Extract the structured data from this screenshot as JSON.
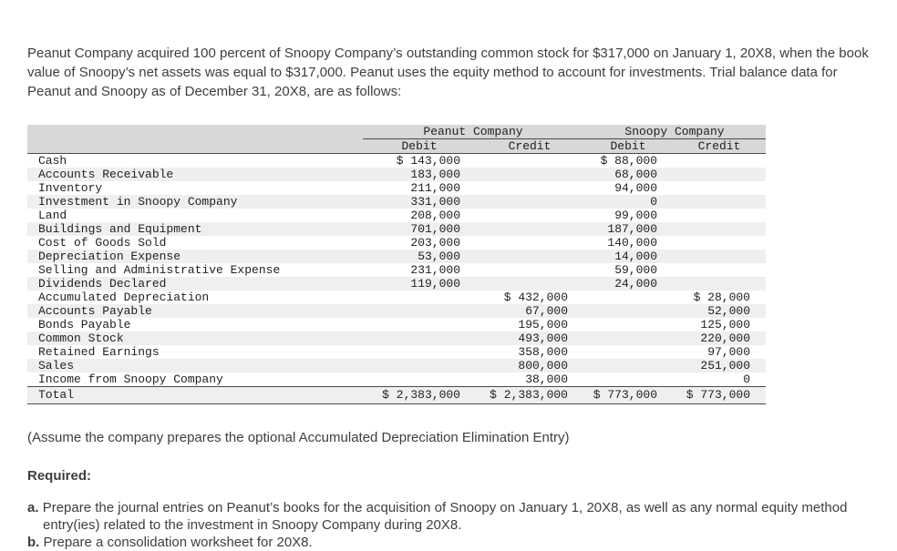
{
  "intro": "Peanut Company acquired 100 percent of Snoopy Company’s outstanding common stock for $317,000 on January 1, 20X8, when the book value of Snoopy’s net assets was equal to $317,000. Peanut uses the equity method to account for investments. Trial balance data for Peanut and Snoopy as of December 31, 20X8, are as follows:",
  "table": {
    "group_headers": [
      "Peanut Company",
      "Snoopy Company"
    ],
    "col_headers": [
      "Debit",
      "Credit",
      "Debit",
      "Credit"
    ],
    "rows": [
      {
        "account": "Cash",
        "peanut_debit": "$ 143,000",
        "peanut_credit": "",
        "snoopy_debit": "$ 88,000",
        "snoopy_credit": ""
      },
      {
        "account": "Accounts Receivable",
        "peanut_debit": "183,000",
        "peanut_credit": "",
        "snoopy_debit": "68,000",
        "snoopy_credit": ""
      },
      {
        "account": "Inventory",
        "peanut_debit": "211,000",
        "peanut_credit": "",
        "snoopy_debit": "94,000",
        "snoopy_credit": ""
      },
      {
        "account": "Investment in Snoopy Company",
        "peanut_debit": "331,000",
        "peanut_credit": "",
        "snoopy_debit": "0",
        "snoopy_credit": ""
      },
      {
        "account": "Land",
        "peanut_debit": "208,000",
        "peanut_credit": "",
        "snoopy_debit": "99,000",
        "snoopy_credit": ""
      },
      {
        "account": "Buildings and Equipment",
        "peanut_debit": "701,000",
        "peanut_credit": "",
        "snoopy_debit": "187,000",
        "snoopy_credit": ""
      },
      {
        "account": "Cost of Goods Sold",
        "peanut_debit": "203,000",
        "peanut_credit": "",
        "snoopy_debit": "140,000",
        "snoopy_credit": ""
      },
      {
        "account": "Depreciation Expense",
        "peanut_debit": "53,000",
        "peanut_credit": "",
        "snoopy_debit": "14,000",
        "snoopy_credit": ""
      },
      {
        "account": "Selling and Administrative Expense",
        "peanut_debit": "231,000",
        "peanut_credit": "",
        "snoopy_debit": "59,000",
        "snoopy_credit": ""
      },
      {
        "account": "Dividends Declared",
        "peanut_debit": "119,000",
        "peanut_credit": "",
        "snoopy_debit": "24,000",
        "snoopy_credit": ""
      },
      {
        "account": "Accumulated Depreciation",
        "peanut_debit": "",
        "peanut_credit": "$ 432,000",
        "snoopy_debit": "",
        "snoopy_credit": "$ 28,000"
      },
      {
        "account": "Accounts Payable",
        "peanut_debit": "",
        "peanut_credit": "67,000",
        "snoopy_debit": "",
        "snoopy_credit": "52,000"
      },
      {
        "account": "Bonds Payable",
        "peanut_debit": "",
        "peanut_credit": "195,000",
        "snoopy_debit": "",
        "snoopy_credit": "125,000"
      },
      {
        "account": "Common Stock",
        "peanut_debit": "",
        "peanut_credit": "493,000",
        "snoopy_debit": "",
        "snoopy_credit": "220,000"
      },
      {
        "account": "Retained Earnings",
        "peanut_debit": "",
        "peanut_credit": "358,000",
        "snoopy_debit": "",
        "snoopy_credit": "97,000"
      },
      {
        "account": "Sales",
        "peanut_debit": "",
        "peanut_credit": "800,000",
        "snoopy_debit": "",
        "snoopy_credit": "251,000"
      },
      {
        "account": "Income from Snoopy Company",
        "peanut_debit": "",
        "peanut_credit": "38,000",
        "snoopy_debit": "",
        "snoopy_credit": "0"
      }
    ],
    "total": {
      "account": "Total",
      "peanut_debit": "$ 2,383,000",
      "peanut_credit": "$ 2,383,000",
      "snoopy_debit": "$ 773,000",
      "snoopy_credit": "$ 773,000"
    }
  },
  "assumption": "(Assume the company prepares the optional Accumulated Depreciation Elimination Entry)",
  "required_label": "Required:",
  "requirements": [
    {
      "letter": "a.",
      "text": "Prepare the journal entries on Peanut’s books for the acquisition of Snoopy on January 1, 20X8, as well as any normal equity method entry(ies) related to the investment in Snoopy Company during 20X8."
    },
    {
      "letter": "b.",
      "text": "Prepare a consolidation worksheet for 20X8."
    }
  ],
  "colors": {
    "header_bg": "#d8d8d8",
    "stripe_bg": "#efefef",
    "text": "#3e3e3e"
  }
}
